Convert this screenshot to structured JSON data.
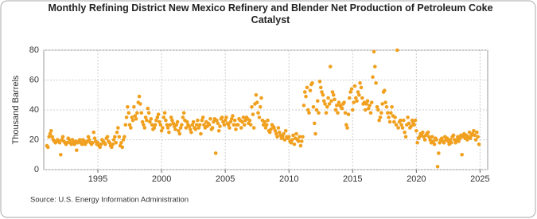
{
  "chart_data": {
    "type": "scatter",
    "title": "Monthly Refining District New Mexico Refinery and Blender Net Production of Petroleum Coke Catalyst",
    "y_label": "Thousand Barrels",
    "source": "Source: U.S. Energy Information Administration",
    "color": "#f0a01e",
    "grid": true,
    "xlim": [
      1990.75,
      2025.6
    ],
    "xticks": [
      1995,
      2000,
      2005,
      2010,
      2015,
      2020,
      2025
    ],
    "ylim": [
      0,
      80
    ],
    "yticks": [
      0,
      20,
      40,
      60,
      80
    ],
    "x": [
      1991,
      1991.08,
      1991.17,
      1991.25,
      1991.33,
      1991.42,
      1991.5,
      1991.58,
      1991.67,
      1991.75,
      1991.83,
      1991.92,
      1992,
      1992.08,
      1992.17,
      1992.25,
      1992.33,
      1992.42,
      1992.5,
      1992.58,
      1992.67,
      1992.75,
      1992.83,
      1992.92,
      1993,
      1993.08,
      1993.17,
      1993.25,
      1993.33,
      1993.42,
      1993.5,
      1993.58,
      1993.67,
      1993.75,
      1993.83,
      1993.92,
      1994,
      1994.08,
      1994.17,
      1994.25,
      1994.33,
      1994.42,
      1994.5,
      1994.58,
      1994.67,
      1994.75,
      1994.83,
      1994.92,
      1995,
      1995.08,
      1995.17,
      1995.25,
      1995.33,
      1995.42,
      1995.5,
      1995.58,
      1995.67,
      1995.75,
      1995.83,
      1995.92,
      1996,
      1996.08,
      1996.17,
      1996.25,
      1996.33,
      1996.42,
      1996.5,
      1996.58,
      1996.67,
      1996.75,
      1996.83,
      1996.92,
      1997,
      1997.08,
      1997.17,
      1997.25,
      1997.33,
      1997.42,
      1997.5,
      1997.58,
      1997.67,
      1997.75,
      1997.83,
      1997.92,
      1998,
      1998.08,
      1998.17,
      1998.25,
      1998.33,
      1998.42,
      1998.5,
      1998.58,
      1998.67,
      1998.75,
      1998.83,
      1998.92,
      1999,
      1999.08,
      1999.17,
      1999.25,
      1999.33,
      1999.42,
      1999.5,
      1999.58,
      1999.67,
      1999.75,
      1999.83,
      1999.92,
      2000,
      2000.08,
      2000.17,
      2000.25,
      2000.33,
      2000.42,
      2000.5,
      2000.58,
      2000.67,
      2000.75,
      2000.83,
      2000.92,
      2001,
      2001.08,
      2001.17,
      2001.25,
      2001.33,
      2001.42,
      2001.5,
      2001.58,
      2001.67,
      2001.75,
      2001.83,
      2001.92,
      2002,
      2002.08,
      2002.17,
      2002.25,
      2002.33,
      2002.42,
      2002.5,
      2002.58,
      2002.67,
      2002.75,
      2002.83,
      2002.92,
      2003,
      2003.08,
      2003.17,
      2003.25,
      2003.33,
      2003.42,
      2003.5,
      2003.58,
      2003.67,
      2003.75,
      2003.83,
      2003.92,
      2004,
      2004.08,
      2004.17,
      2004.25,
      2004.33,
      2004.42,
      2004.5,
      2004.58,
      2004.67,
      2004.75,
      2004.83,
      2004.92,
      2005,
      2005.08,
      2005.17,
      2005.25,
      2005.33,
      2005.42,
      2005.5,
      2005.58,
      2005.67,
      2005.75,
      2005.83,
      2005.92,
      2006,
      2006.08,
      2006.17,
      2006.25,
      2006.33,
      2006.42,
      2006.5,
      2006.58,
      2006.67,
      2006.75,
      2006.83,
      2006.92,
      2007,
      2007.08,
      2007.17,
      2007.25,
      2007.33,
      2007.42,
      2007.5,
      2007.58,
      2007.67,
      2007.75,
      2007.83,
      2007.92,
      2008,
      2008.08,
      2008.17,
      2008.25,
      2008.33,
      2008.42,
      2008.5,
      2008.58,
      2008.67,
      2008.75,
      2008.83,
      2008.92,
      2009,
      2009.08,
      2009.17,
      2009.25,
      2009.33,
      2009.42,
      2009.5,
      2009.58,
      2009.67,
      2009.75,
      2009.83,
      2009.92,
      2010,
      2010.08,
      2010.17,
      2010.25,
      2010.33,
      2010.42,
      2010.5,
      2010.58,
      2010.67,
      2010.75,
      2010.83,
      2010.92,
      2011,
      2011.08,
      2011.17,
      2011.25,
      2011.33,
      2011.42,
      2011.5,
      2011.58,
      2011.67,
      2011.75,
      2011.83,
      2011.92,
      2012,
      2012.08,
      2012.17,
      2012.25,
      2012.33,
      2012.42,
      2012.5,
      2012.58,
      2012.67,
      2012.75,
      2012.83,
      2012.92,
      2013,
      2013.08,
      2013.17,
      2013.25,
      2013.33,
      2013.42,
      2013.5,
      2013.58,
      2013.67,
      2013.75,
      2013.83,
      2013.92,
      2014,
      2014.08,
      2014.17,
      2014.25,
      2014.33,
      2014.42,
      2014.5,
      2014.58,
      2014.67,
      2014.75,
      2014.83,
      2014.92,
      2015,
      2015.08,
      2015.17,
      2015.25,
      2015.33,
      2015.42,
      2015.5,
      2015.58,
      2015.67,
      2015.75,
      2015.83,
      2015.92,
      2016,
      2016.08,
      2016.17,
      2016.25,
      2016.33,
      2016.42,
      2016.5,
      2016.58,
      2016.67,
      2016.75,
      2016.83,
      2016.92,
      2017,
      2017.08,
      2017.17,
      2017.25,
      2017.33,
      2017.42,
      2017.5,
      2017.58,
      2017.67,
      2017.75,
      2017.83,
      2017.92,
      2018,
      2018.08,
      2018.17,
      2018.25,
      2018.33,
      2018.42,
      2018.5,
      2018.58,
      2018.67,
      2018.75,
      2018.83,
      2018.92,
      2019,
      2019.08,
      2019.17,
      2019.25,
      2019.33,
      2019.42,
      2019.5,
      2019.58,
      2019.67,
      2019.75,
      2019.83,
      2019.92,
      2020,
      2020.08,
      2020.17,
      2020.25,
      2020.33,
      2020.42,
      2020.5,
      2020.58,
      2020.67,
      2020.75,
      2020.83,
      2020.92,
      2021,
      2021.08,
      2021.17,
      2021.25,
      2021.33,
      2021.42,
      2021.5,
      2021.58,
      2021.67,
      2021.75,
      2021.83,
      2021.92,
      2022,
      2022.08,
      2022.17,
      2022.25,
      2022.33,
      2022.42,
      2022.5,
      2022.58,
      2022.67,
      2022.75,
      2022.83,
      2022.92,
      2023,
      2023.08,
      2023.17,
      2023.25,
      2023.33,
      2023.42,
      2023.5,
      2023.58,
      2023.67,
      2023.75,
      2023.83,
      2023.92,
      2024,
      2024.08,
      2024.17,
      2024.25,
      2024.33,
      2024.42,
      2024.5,
      2024.58,
      2024.67,
      2024.75,
      2024.83,
      2024.92
    ],
    "values": [
      16,
      15,
      22,
      24,
      26,
      22,
      20,
      19,
      18,
      19,
      20,
      19,
      18,
      10,
      20,
      22,
      19,
      18,
      17,
      18,
      21,
      20,
      18,
      17,
      20,
      18,
      17,
      19,
      13,
      18,
      19,
      20,
      18,
      17,
      20,
      19,
      17,
      18,
      19,
      22,
      20,
      18,
      17,
      18,
      25,
      21,
      19,
      17,
      18,
      16,
      15,
      17,
      20,
      19,
      18,
      17,
      21,
      22,
      19,
      18,
      16,
      15,
      17,
      20,
      22,
      18,
      25,
      28,
      22,
      16,
      18,
      15,
      20,
      22,
      30,
      35,
      42,
      38,
      30,
      28,
      35,
      33,
      42,
      36,
      34,
      38,
      45,
      49,
      44,
      38,
      32,
      30,
      28,
      35,
      33,
      41,
      38,
      32,
      34,
      30,
      27,
      28,
      30,
      33,
      35,
      37,
      32,
      30,
      26,
      28,
      35,
      38,
      33,
      30,
      28,
      25,
      30,
      35,
      33,
      31,
      29,
      27,
      30,
      32,
      26,
      24,
      28,
      30,
      35,
      38,
      33,
      28,
      32,
      30,
      29,
      27,
      25,
      30,
      32,
      28,
      27,
      30,
      33,
      28,
      30,
      24,
      33,
      35,
      30,
      28,
      32,
      29,
      31,
      30,
      34,
      27,
      28,
      32,
      34,
      11,
      33,
      31,
      26,
      29,
      34,
      35,
      32,
      30,
      33,
      35,
      31,
      30,
      28,
      32,
      34,
      36,
      30,
      33,
      27,
      30,
      30,
      34,
      33,
      28,
      32,
      35,
      30,
      33,
      35,
      34,
      31,
      33,
      30,
      42,
      37,
      28,
      44,
      50,
      45,
      38,
      35,
      42,
      48,
      33,
      30,
      32,
      28,
      30,
      33,
      26,
      25,
      27,
      30,
      29,
      28,
      26,
      24,
      22,
      28,
      25,
      23,
      21,
      22,
      24,
      20,
      26,
      22,
      21,
      22,
      19,
      18,
      20,
      23,
      17,
      21,
      24,
      20,
      19,
      22,
      16,
      19,
      22,
      43,
      52,
      49,
      55,
      40,
      38,
      53,
      57,
      58,
      42,
      31,
      24,
      40,
      46,
      38,
      59,
      55,
      52,
      50,
      46,
      44,
      38,
      42,
      48,
      44,
      69,
      46,
      52,
      50,
      47,
      40,
      43,
      38,
      45,
      43,
      42,
      41,
      44,
      45,
      38,
      30,
      28,
      37,
      48,
      52,
      54,
      40,
      45,
      56,
      48,
      46,
      52,
      50,
      58,
      55,
      48,
      44,
      45,
      40,
      44,
      46,
      41,
      43,
      38,
      45,
      62,
      79,
      69,
      58,
      42,
      40,
      33,
      35,
      38,
      44,
      52,
      53,
      45,
      42,
      38,
      35,
      32,
      38,
      42,
      36,
      32,
      35,
      30,
      80,
      28,
      32,
      33,
      30,
      28,
      33,
      25,
      22,
      30,
      35,
      31,
      28,
      29,
      33,
      31,
      30,
      33,
      26,
      18,
      21,
      22,
      24,
      23,
      25,
      22,
      20,
      23,
      24,
      25,
      22,
      20,
      18,
      22,
      19,
      17,
      21,
      20,
      2,
      11,
      18,
      20,
      21,
      19,
      18,
      22,
      20,
      21,
      19,
      17,
      20,
      18,
      22,
      23,
      20,
      18,
      20,
      22,
      19,
      21,
      23,
      10,
      22,
      24,
      21,
      23,
      20,
      22,
      25,
      21,
      23,
      24,
      26,
      23,
      20,
      25,
      22,
      17
    ]
  }
}
